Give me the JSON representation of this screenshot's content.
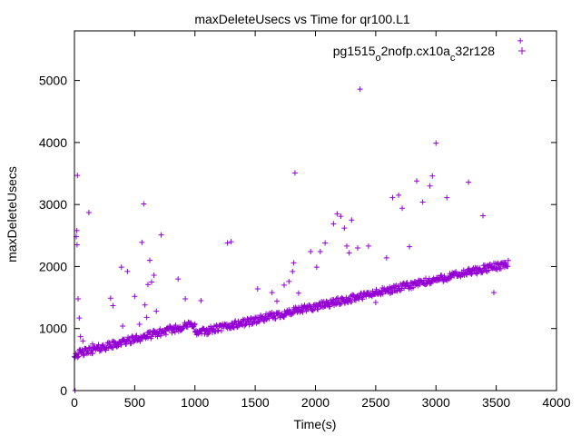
{
  "chart_data": {
    "type": "scatter",
    "title": "maxDeleteUsecs vs Time for qr100.L1",
    "xlabel": "Time(s)",
    "ylabel": "maxDeleteUsecs",
    "xlim": [
      0,
      4000
    ],
    "ylim": [
      0,
      5800
    ],
    "xticks": [
      "0",
      "500",
      "1000",
      "1500",
      "2000",
      "2500",
      "3000",
      "3500",
      "4000"
    ],
    "yticks": [
      "0",
      "1000",
      "2000",
      "3000",
      "4000",
      "5000"
    ],
    "xtick_values": [
      0,
      500,
      1000,
      1500,
      2000,
      2500,
      3000,
      3500,
      4000
    ],
    "ytick_values": [
      0,
      1000,
      2000,
      3000,
      4000,
      5000
    ],
    "grid": false,
    "legend_position": "top-right",
    "series": [
      {
        "name": "pg1515_o2nofp.cx10a_c32r128",
        "color": "#9400d3",
        "marker": "plus",
        "bands": [
          {
            "x": [
              0,
              1000
            ],
            "y": [
              580,
              1080
            ],
            "step": 5
          },
          {
            "x": [
              1000,
              3600
            ],
            "y": [
              920,
              2050
            ],
            "step": 5
          }
        ],
        "outliers": [
          {
            "x": 5,
            "y": 0
          },
          {
            "x": 15,
            "y": 2480
          },
          {
            "x": 20,
            "y": 2580
          },
          {
            "x": 22,
            "y": 2350
          },
          {
            "x": 25,
            "y": 3470
          },
          {
            "x": 30,
            "y": 1480
          },
          {
            "x": 40,
            "y": 1170
          },
          {
            "x": 50,
            "y": 870
          },
          {
            "x": 70,
            "y": 800
          },
          {
            "x": 120,
            "y": 2870
          },
          {
            "x": 150,
            "y": 750
          },
          {
            "x": 300,
            "y": 1490
          },
          {
            "x": 320,
            "y": 1370
          },
          {
            "x": 390,
            "y": 1990
          },
          {
            "x": 400,
            "y": 1040
          },
          {
            "x": 440,
            "y": 1920
          },
          {
            "x": 500,
            "y": 1520
          },
          {
            "x": 540,
            "y": 1070
          },
          {
            "x": 560,
            "y": 2390
          },
          {
            "x": 575,
            "y": 3010
          },
          {
            "x": 585,
            "y": 1380
          },
          {
            "x": 600,
            "y": 1180
          },
          {
            "x": 610,
            "y": 1710
          },
          {
            "x": 625,
            "y": 2100
          },
          {
            "x": 640,
            "y": 1750
          },
          {
            "x": 660,
            "y": 1860
          },
          {
            "x": 680,
            "y": 1280
          },
          {
            "x": 720,
            "y": 2510
          },
          {
            "x": 860,
            "y": 1800
          },
          {
            "x": 920,
            "y": 1480
          },
          {
            "x": 1050,
            "y": 1450
          },
          {
            "x": 1270,
            "y": 2380
          },
          {
            "x": 1300,
            "y": 2400
          },
          {
            "x": 1520,
            "y": 1640
          },
          {
            "x": 1640,
            "y": 1580
          },
          {
            "x": 1680,
            "y": 1440
          },
          {
            "x": 1740,
            "y": 1700
          },
          {
            "x": 1780,
            "y": 1760
          },
          {
            "x": 1810,
            "y": 1920
          },
          {
            "x": 1820,
            "y": 2060
          },
          {
            "x": 1830,
            "y": 3510
          },
          {
            "x": 1860,
            "y": 1570
          },
          {
            "x": 1960,
            "y": 2240
          },
          {
            "x": 2010,
            "y": 1990
          },
          {
            "x": 2040,
            "y": 2240
          },
          {
            "x": 2080,
            "y": 2380
          },
          {
            "x": 2150,
            "y": 2690
          },
          {
            "x": 2180,
            "y": 2850
          },
          {
            "x": 2210,
            "y": 2810
          },
          {
            "x": 2240,
            "y": 2620
          },
          {
            "x": 2260,
            "y": 2330
          },
          {
            "x": 2280,
            "y": 2220
          },
          {
            "x": 2300,
            "y": 2750
          },
          {
            "x": 2350,
            "y": 2300
          },
          {
            "x": 2370,
            "y": 4860
          },
          {
            "x": 2440,
            "y": 2330
          },
          {
            "x": 2500,
            "y": 1420
          },
          {
            "x": 2590,
            "y": 2140
          },
          {
            "x": 2640,
            "y": 3110
          },
          {
            "x": 2690,
            "y": 3150
          },
          {
            "x": 2720,
            "y": 2940
          },
          {
            "x": 2780,
            "y": 2320
          },
          {
            "x": 2840,
            "y": 3380
          },
          {
            "x": 2890,
            "y": 3040
          },
          {
            "x": 2950,
            "y": 3300
          },
          {
            "x": 2970,
            "y": 3460
          },
          {
            "x": 3000,
            "y": 3990
          },
          {
            "x": 3090,
            "y": 3110
          },
          {
            "x": 3270,
            "y": 3360
          },
          {
            "x": 3390,
            "y": 2820
          },
          {
            "x": 3480,
            "y": 1580
          },
          {
            "x": 3700,
            "y": 5640
          }
        ]
      }
    ]
  }
}
